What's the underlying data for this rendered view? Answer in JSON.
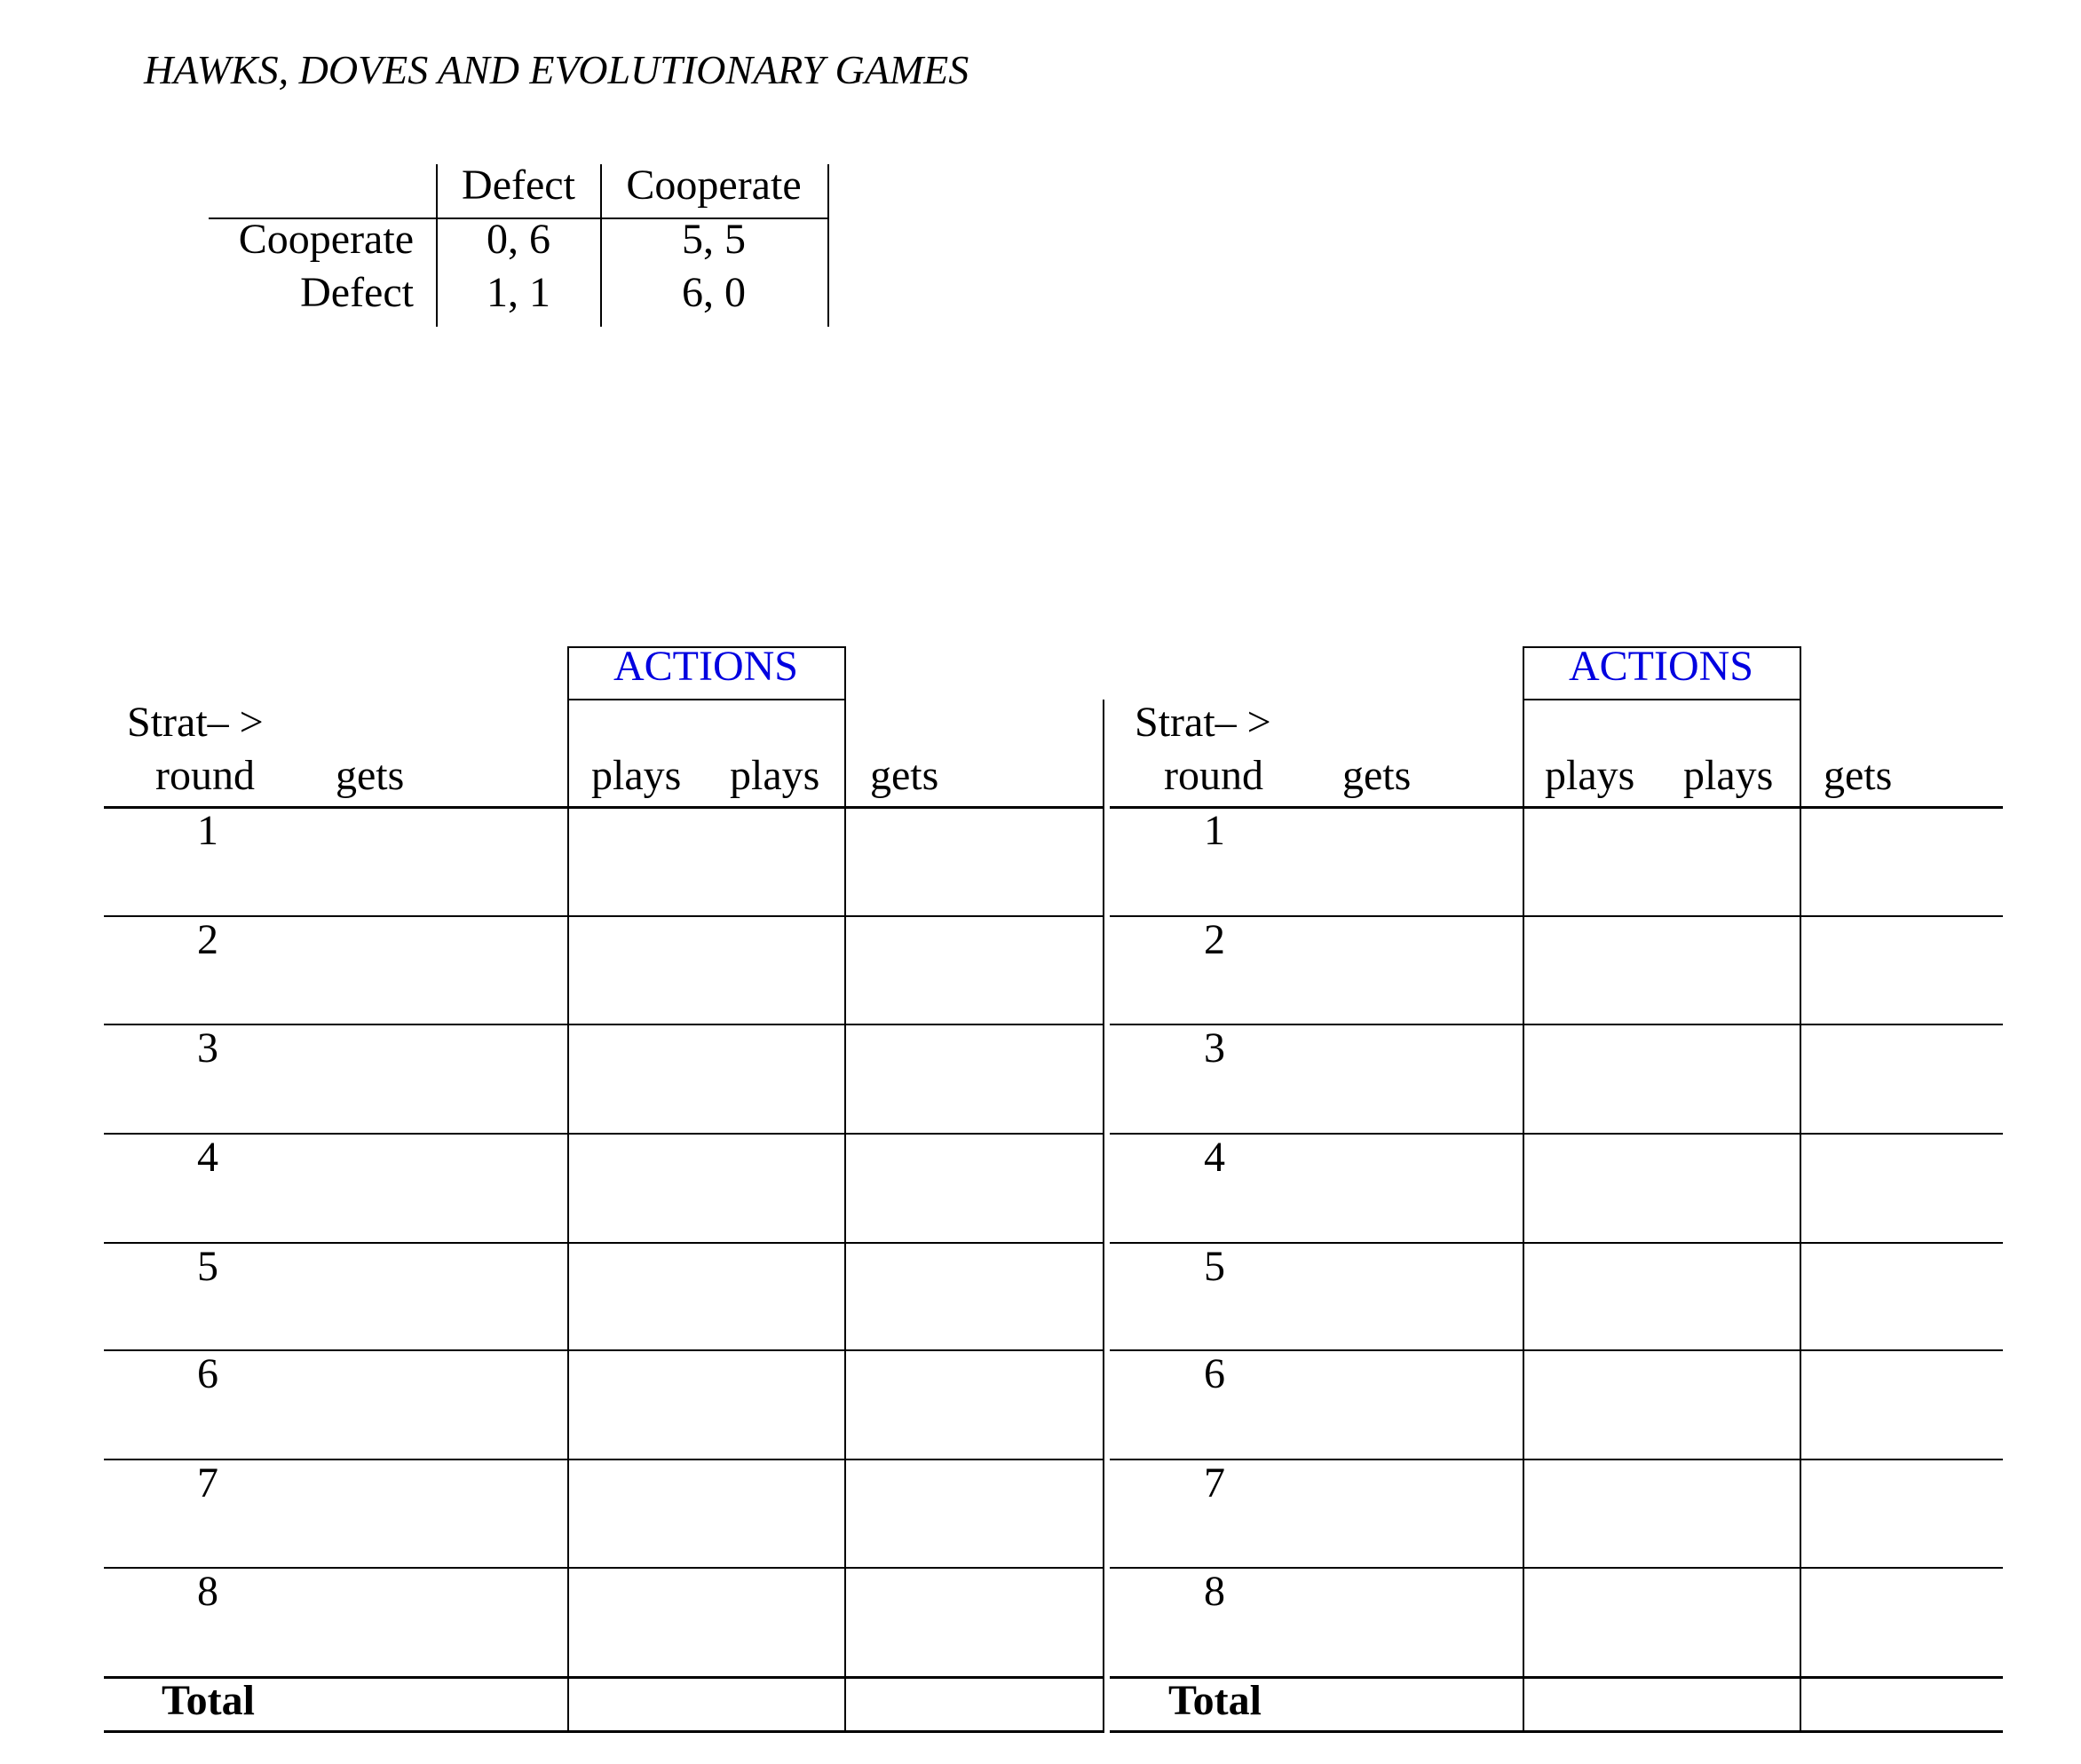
{
  "title": "HAWKS, DOVES AND EVOLUTIONARY GAMES",
  "payoff_matrix": {
    "col_headers": [
      "Defect",
      "Cooperate"
    ],
    "rows": [
      {
        "label": "Cooperate",
        "cells": [
          "0, 6",
          "5, 5"
        ]
      },
      {
        "label": "Defect",
        "cells": [
          "1, 1",
          "6, 0"
        ]
      }
    ]
  },
  "score_tables": [
    {
      "actions_label": "ACTIONS",
      "header_line1": "Strat– >",
      "headers": [
        "round",
        "gets",
        "plays",
        "plays",
        "gets"
      ],
      "rounds": [
        "1",
        "2",
        "3",
        "4",
        "5",
        "6",
        "7",
        "8"
      ],
      "total_label": "Total"
    },
    {
      "actions_label": "ACTIONS",
      "header_line1": "Strat– >",
      "headers": [
        "round",
        "gets",
        "plays",
        "plays",
        "gets"
      ],
      "rounds": [
        "1",
        "2",
        "3",
        "4",
        "5",
        "6",
        "7",
        "8"
      ],
      "total_label": "Total"
    }
  ],
  "colors": {
    "actions_text": "#0000e0",
    "lines": "#000000"
  }
}
